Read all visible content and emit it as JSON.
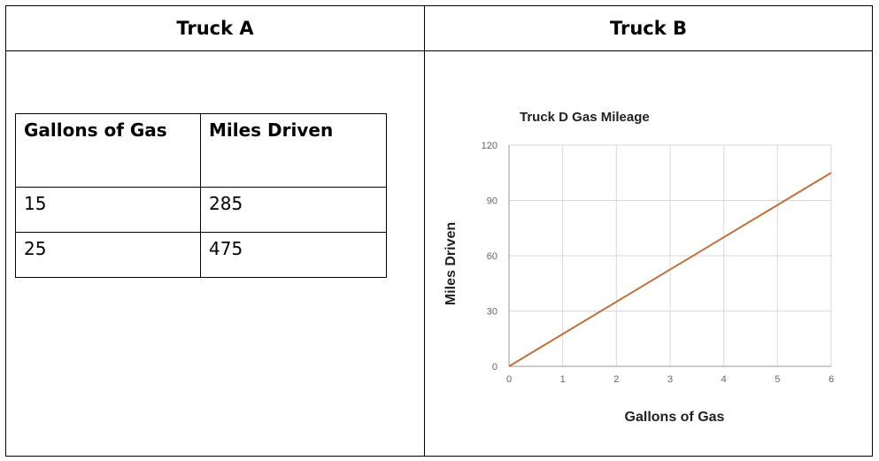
{
  "comparison": {
    "truck_a_header": "Truck A",
    "truck_b_header": "Truck B"
  },
  "truck_a_table": {
    "headers": [
      "Gallons of Gas",
      "Miles Driven"
    ],
    "rows": [
      [
        "15",
        "285"
      ],
      [
        "25",
        "475"
      ]
    ]
  },
  "chart_data": {
    "type": "line",
    "title": "Truck D Gas Mileage",
    "xlabel": "Gallons of Gas",
    "ylabel": "Miles Driven",
    "xlim": [
      0,
      6
    ],
    "ylim": [
      0,
      120
    ],
    "xticks": [
      0,
      1,
      2,
      3,
      4,
      5,
      6
    ],
    "yticks": [
      0,
      30,
      60,
      90,
      120
    ],
    "grid": true,
    "series": [
      {
        "x": [
          0,
          6
        ],
        "y": [
          0,
          105
        ],
        "color": "#c0703c"
      }
    ]
  }
}
